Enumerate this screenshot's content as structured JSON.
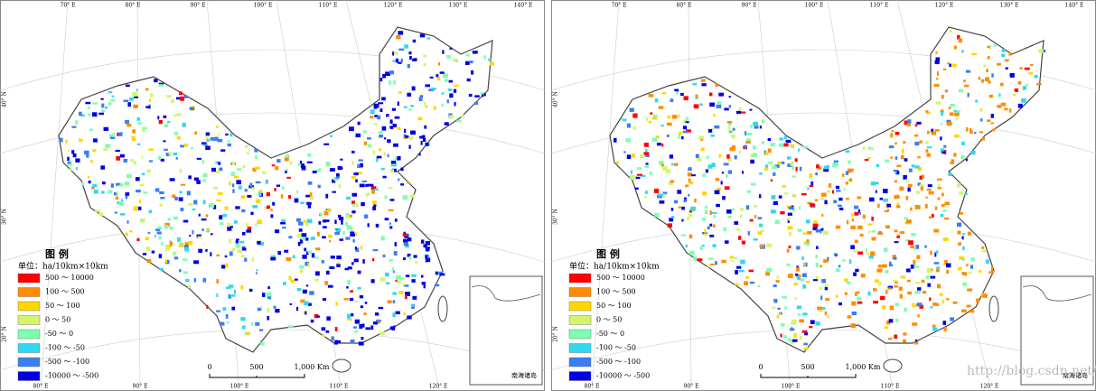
{
  "panels": [
    {
      "lon_top": [
        "70° E",
        "80° E",
        "90° E",
        "100° E",
        "110° E",
        "120° E",
        "130° E",
        "140° E"
      ],
      "lat_left": [
        "40° N",
        "30° N",
        "20° N"
      ],
      "lon_bottom": [
        "80° E",
        "90° E",
        "100° E",
        "110° E",
        "120° E"
      ],
      "legend": {
        "title": "图 例",
        "unit": "单位：ha/10km×10km",
        "items": [
          {
            "label": "500 ～ 10000",
            "color": "#ff0000"
          },
          {
            "label": "100 ～ 500",
            "color": "#ff8c00"
          },
          {
            "label": "50 ～ 100",
            "color": "#ffd700"
          },
          {
            "label": "0 ～ 50",
            "color": "#d4f56a"
          },
          {
            "label": "-50 ～ 0",
            "color": "#7dffb0"
          },
          {
            "label": "-100 ～ -50",
            "color": "#30d8f0"
          },
          {
            "label": "-500 ～ -100",
            "color": "#3a7ef0"
          },
          {
            "label": "-10000 ～ -500",
            "color": "#0000e0"
          }
        ]
      },
      "scale": [
        "0",
        "500",
        "1,000 Km"
      ],
      "inset": "南海诸岛"
    },
    {
      "lon_top": [
        "70° E",
        "80° E",
        "90° E",
        "100° E",
        "110° E",
        "120° E",
        "130° E",
        "140° E"
      ],
      "lat_left": [
        "40° N",
        "30° N",
        "20° N"
      ],
      "lon_bottom": [
        "80° E",
        "90° E",
        "100° E",
        "110° E",
        "120° E"
      ],
      "legend": {
        "title": "图 例",
        "unit": "单位：ha/10km×10km",
        "items": [
          {
            "label": "500 ～ 10000",
            "color": "#ff0000"
          },
          {
            "label": "100 ～ 500",
            "color": "#ff8c00"
          },
          {
            "label": "50 ～ 100",
            "color": "#ffd700"
          },
          {
            "label": "0 ～ 50",
            "color": "#d4f56a"
          },
          {
            "label": "-50 ～ 0",
            "color": "#7dffb0"
          },
          {
            "label": "-100 ～ -50",
            "color": "#30d8f0"
          },
          {
            "label": "-500 ～ -100",
            "color": "#3a7ef0"
          },
          {
            "label": "-10000 ～ -500",
            "color": "#0000e0"
          }
        ]
      },
      "scale": [
        "0",
        "500",
        "1,000 Km"
      ],
      "inset": "南海诸岛"
    }
  ],
  "watermark": "http://blog.csdn.net/ds"
}
